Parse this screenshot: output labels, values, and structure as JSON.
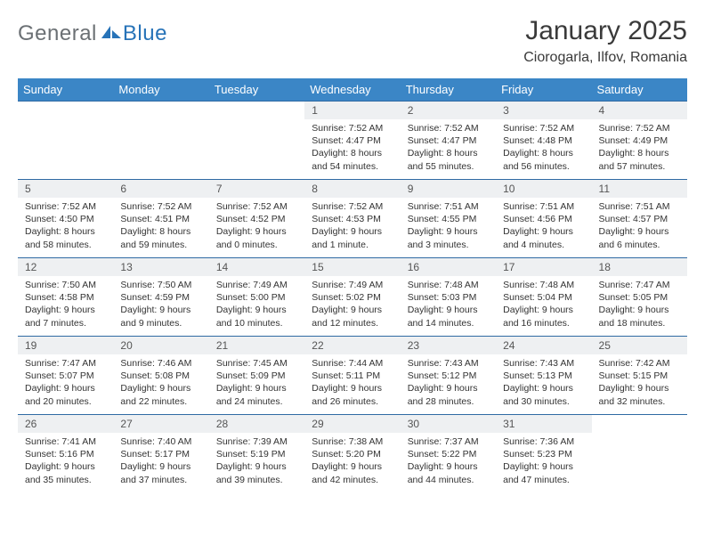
{
  "brand": {
    "part1": "General",
    "part2": "Blue"
  },
  "title": {
    "month": "January 2025",
    "location": "Ciorogarla, Ilfov, Romania"
  },
  "colors": {
    "header_bg": "#3b86c6",
    "header_text": "#ffffff",
    "row_border": "#2f6aa3",
    "daynum_bg": "#eef0f2",
    "brand_gray": "#6b7074",
    "brand_blue": "#2773b8"
  },
  "weekdays": [
    "Sunday",
    "Monday",
    "Tuesday",
    "Wednesday",
    "Thursday",
    "Friday",
    "Saturday"
  ],
  "weeks": [
    [
      {
        "empty": true
      },
      {
        "empty": true
      },
      {
        "empty": true
      },
      {
        "day": "1",
        "l1": "Sunrise: 7:52 AM",
        "l2": "Sunset: 4:47 PM",
        "l3": "Daylight: 8 hours",
        "l4": "and 54 minutes."
      },
      {
        "day": "2",
        "l1": "Sunrise: 7:52 AM",
        "l2": "Sunset: 4:47 PM",
        "l3": "Daylight: 8 hours",
        "l4": "and 55 minutes."
      },
      {
        "day": "3",
        "l1": "Sunrise: 7:52 AM",
        "l2": "Sunset: 4:48 PM",
        "l3": "Daylight: 8 hours",
        "l4": "and 56 minutes."
      },
      {
        "day": "4",
        "l1": "Sunrise: 7:52 AM",
        "l2": "Sunset: 4:49 PM",
        "l3": "Daylight: 8 hours",
        "l4": "and 57 minutes."
      }
    ],
    [
      {
        "day": "5",
        "l1": "Sunrise: 7:52 AM",
        "l2": "Sunset: 4:50 PM",
        "l3": "Daylight: 8 hours",
        "l4": "and 58 minutes."
      },
      {
        "day": "6",
        "l1": "Sunrise: 7:52 AM",
        "l2": "Sunset: 4:51 PM",
        "l3": "Daylight: 8 hours",
        "l4": "and 59 minutes."
      },
      {
        "day": "7",
        "l1": "Sunrise: 7:52 AM",
        "l2": "Sunset: 4:52 PM",
        "l3": "Daylight: 9 hours",
        "l4": "and 0 minutes."
      },
      {
        "day": "8",
        "l1": "Sunrise: 7:52 AM",
        "l2": "Sunset: 4:53 PM",
        "l3": "Daylight: 9 hours",
        "l4": "and 1 minute."
      },
      {
        "day": "9",
        "l1": "Sunrise: 7:51 AM",
        "l2": "Sunset: 4:55 PM",
        "l3": "Daylight: 9 hours",
        "l4": "and 3 minutes."
      },
      {
        "day": "10",
        "l1": "Sunrise: 7:51 AM",
        "l2": "Sunset: 4:56 PM",
        "l3": "Daylight: 9 hours",
        "l4": "and 4 minutes."
      },
      {
        "day": "11",
        "l1": "Sunrise: 7:51 AM",
        "l2": "Sunset: 4:57 PM",
        "l3": "Daylight: 9 hours",
        "l4": "and 6 minutes."
      }
    ],
    [
      {
        "day": "12",
        "l1": "Sunrise: 7:50 AM",
        "l2": "Sunset: 4:58 PM",
        "l3": "Daylight: 9 hours",
        "l4": "and 7 minutes."
      },
      {
        "day": "13",
        "l1": "Sunrise: 7:50 AM",
        "l2": "Sunset: 4:59 PM",
        "l3": "Daylight: 9 hours",
        "l4": "and 9 minutes."
      },
      {
        "day": "14",
        "l1": "Sunrise: 7:49 AM",
        "l2": "Sunset: 5:00 PM",
        "l3": "Daylight: 9 hours",
        "l4": "and 10 minutes."
      },
      {
        "day": "15",
        "l1": "Sunrise: 7:49 AM",
        "l2": "Sunset: 5:02 PM",
        "l3": "Daylight: 9 hours",
        "l4": "and 12 minutes."
      },
      {
        "day": "16",
        "l1": "Sunrise: 7:48 AM",
        "l2": "Sunset: 5:03 PM",
        "l3": "Daylight: 9 hours",
        "l4": "and 14 minutes."
      },
      {
        "day": "17",
        "l1": "Sunrise: 7:48 AM",
        "l2": "Sunset: 5:04 PM",
        "l3": "Daylight: 9 hours",
        "l4": "and 16 minutes."
      },
      {
        "day": "18",
        "l1": "Sunrise: 7:47 AM",
        "l2": "Sunset: 5:05 PM",
        "l3": "Daylight: 9 hours",
        "l4": "and 18 minutes."
      }
    ],
    [
      {
        "day": "19",
        "l1": "Sunrise: 7:47 AM",
        "l2": "Sunset: 5:07 PM",
        "l3": "Daylight: 9 hours",
        "l4": "and 20 minutes."
      },
      {
        "day": "20",
        "l1": "Sunrise: 7:46 AM",
        "l2": "Sunset: 5:08 PM",
        "l3": "Daylight: 9 hours",
        "l4": "and 22 minutes."
      },
      {
        "day": "21",
        "l1": "Sunrise: 7:45 AM",
        "l2": "Sunset: 5:09 PM",
        "l3": "Daylight: 9 hours",
        "l4": "and 24 minutes."
      },
      {
        "day": "22",
        "l1": "Sunrise: 7:44 AM",
        "l2": "Sunset: 5:11 PM",
        "l3": "Daylight: 9 hours",
        "l4": "and 26 minutes."
      },
      {
        "day": "23",
        "l1": "Sunrise: 7:43 AM",
        "l2": "Sunset: 5:12 PM",
        "l3": "Daylight: 9 hours",
        "l4": "and 28 minutes."
      },
      {
        "day": "24",
        "l1": "Sunrise: 7:43 AM",
        "l2": "Sunset: 5:13 PM",
        "l3": "Daylight: 9 hours",
        "l4": "and 30 minutes."
      },
      {
        "day": "25",
        "l1": "Sunrise: 7:42 AM",
        "l2": "Sunset: 5:15 PM",
        "l3": "Daylight: 9 hours",
        "l4": "and 32 minutes."
      }
    ],
    [
      {
        "day": "26",
        "l1": "Sunrise: 7:41 AM",
        "l2": "Sunset: 5:16 PM",
        "l3": "Daylight: 9 hours",
        "l4": "and 35 minutes."
      },
      {
        "day": "27",
        "l1": "Sunrise: 7:40 AM",
        "l2": "Sunset: 5:17 PM",
        "l3": "Daylight: 9 hours",
        "l4": "and 37 minutes."
      },
      {
        "day": "28",
        "l1": "Sunrise: 7:39 AM",
        "l2": "Sunset: 5:19 PM",
        "l3": "Daylight: 9 hours",
        "l4": "and 39 minutes."
      },
      {
        "day": "29",
        "l1": "Sunrise: 7:38 AM",
        "l2": "Sunset: 5:20 PM",
        "l3": "Daylight: 9 hours",
        "l4": "and 42 minutes."
      },
      {
        "day": "30",
        "l1": "Sunrise: 7:37 AM",
        "l2": "Sunset: 5:22 PM",
        "l3": "Daylight: 9 hours",
        "l4": "and 44 minutes."
      },
      {
        "day": "31",
        "l1": "Sunrise: 7:36 AM",
        "l2": "Sunset: 5:23 PM",
        "l3": "Daylight: 9 hours",
        "l4": "and 47 minutes."
      },
      {
        "empty": true
      }
    ]
  ]
}
